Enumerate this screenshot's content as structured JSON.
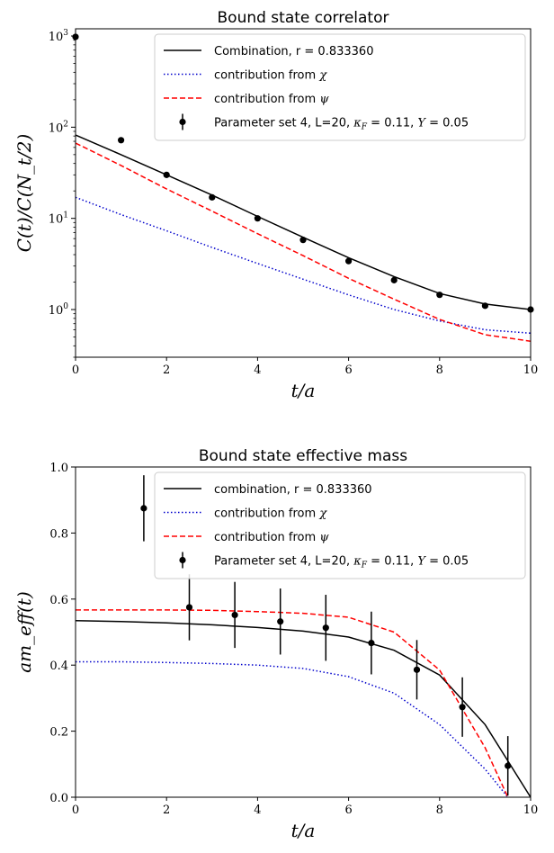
{
  "chart_data": [
    {
      "type": "line",
      "title": "Bound state correlator",
      "xlabel": "t/a",
      "ylabel": "C(t)/C(N_t/2)",
      "yscale": "log",
      "xlim": [
        0,
        10
      ],
      "ylim": [
        0.3,
        1200
      ],
      "xticks": [
        "0",
        "2",
        "4",
        "6",
        "8",
        "10"
      ],
      "yticks": [
        {
          "base": "10",
          "exp": "0",
          "value": 1
        },
        {
          "base": "10",
          "exp": "1",
          "value": 10
        },
        {
          "base": "10",
          "exp": "2",
          "value": 100
        },
        {
          "base": "10",
          "exp": "3",
          "value": 1000
        }
      ],
      "legend_position": "top-right",
      "grid": false,
      "series": [
        {
          "name": "Combination, r = 0.833360",
          "style": "solid",
          "color": "#000000",
          "x": [
            0,
            1,
            2,
            3,
            4,
            5,
            6,
            7,
            8,
            9,
            10
          ],
          "y": [
            82,
            50,
            30,
            18,
            10.5,
            6.2,
            3.7,
            2.3,
            1.5,
            1.15,
            1.0
          ]
        },
        {
          "name_prefix": "contribution from ",
          "name_symbol": "χ",
          "style": "dotted",
          "color": "#0000cc",
          "x": [
            0,
            1,
            2,
            3,
            4,
            5,
            6,
            7,
            8,
            9,
            10
          ],
          "y": [
            17,
            11,
            7.3,
            4.8,
            3.2,
            2.15,
            1.45,
            1.0,
            0.75,
            0.6,
            0.55
          ]
        },
        {
          "name_prefix": "contribution from ",
          "name_symbol": "ψ",
          "style": "dashed",
          "color": "#ff0000",
          "x": [
            0,
            1,
            2,
            3,
            4,
            5,
            6,
            7,
            8,
            9,
            10
          ],
          "y": [
            67,
            38,
            21,
            12,
            6.8,
            3.9,
            2.2,
            1.3,
            0.78,
            0.53,
            0.45
          ]
        },
        {
          "name_prefix": "Parameter set 4, L=20, ",
          "name_kappa": "κ",
          "name_kappa_sub": "F",
          "name_kappa_val": " = 0.11, ",
          "name_Y": "Y",
          "name_Y_val": " = 0.05",
          "style": "markers",
          "color": "#000000",
          "x": [
            0,
            1,
            2,
            3,
            4,
            5,
            6,
            7,
            8,
            9,
            10
          ],
          "y": [
            980,
            72,
            30,
            17,
            10,
            5.8,
            3.4,
            2.1,
            1.45,
            1.1,
            1.0
          ]
        }
      ]
    },
    {
      "type": "line",
      "title": "Bound state effective mass",
      "xlabel": "t/a",
      "ylabel": "am_eff(t)",
      "xlim": [
        0,
        10
      ],
      "ylim": [
        0,
        1.0
      ],
      "xticks": [
        "0",
        "2",
        "4",
        "6",
        "8",
        "10"
      ],
      "yticks": [
        "0.0",
        "0.2",
        "0.4",
        "0.6",
        "0.8",
        "1.0"
      ],
      "legend_position": "top-right",
      "grid": false,
      "series": [
        {
          "name": "combination, r = 0.833360",
          "style": "solid",
          "color": "#000000",
          "x": [
            0,
            1,
            2,
            3,
            4,
            5,
            6,
            7,
            8,
            9,
            9.5,
            10
          ],
          "y": [
            0.535,
            0.532,
            0.528,
            0.522,
            0.514,
            0.503,
            0.485,
            0.445,
            0.37,
            0.22,
            0.11,
            0.0
          ]
        },
        {
          "name_prefix": "contribution from ",
          "name_symbol": "χ",
          "style": "dotted",
          "color": "#0000cc",
          "x": [
            0,
            1,
            2,
            3,
            4,
            5,
            6,
            7,
            8,
            9,
            9.5
          ],
          "y": [
            0.41,
            0.41,
            0.408,
            0.405,
            0.4,
            0.39,
            0.365,
            0.315,
            0.22,
            0.085,
            0.0
          ]
        },
        {
          "name_prefix": "contribution from ",
          "name_symbol": "ψ",
          "style": "dashed",
          "color": "#ff0000",
          "x": [
            0,
            1,
            2,
            3,
            4,
            5,
            6,
            7,
            8,
            9,
            9.5
          ],
          "y": [
            0.567,
            0.567,
            0.567,
            0.566,
            0.562,
            0.557,
            0.545,
            0.5,
            0.385,
            0.15,
            0.0
          ]
        },
        {
          "name_prefix": "Parameter set 4, L=20, ",
          "name_kappa": "κ",
          "name_kappa_sub": "F",
          "name_kappa_val": " = 0.11, ",
          "name_Y": "Y",
          "name_Y_val": " = 0.05",
          "style": "errorbar",
          "color": "#000000",
          "x": [
            1.5,
            2.5,
            3.5,
            4.5,
            5.5,
            6.5,
            7.5,
            8.5,
            9.5
          ],
          "y": [
            0.875,
            0.575,
            0.552,
            0.532,
            0.513,
            0.467,
            0.386,
            0.273,
            0.095
          ],
          "err": [
            0.1,
            0.1,
            0.1,
            0.1,
            0.1,
            0.095,
            0.09,
            0.09,
            0.09
          ]
        }
      ]
    }
  ]
}
